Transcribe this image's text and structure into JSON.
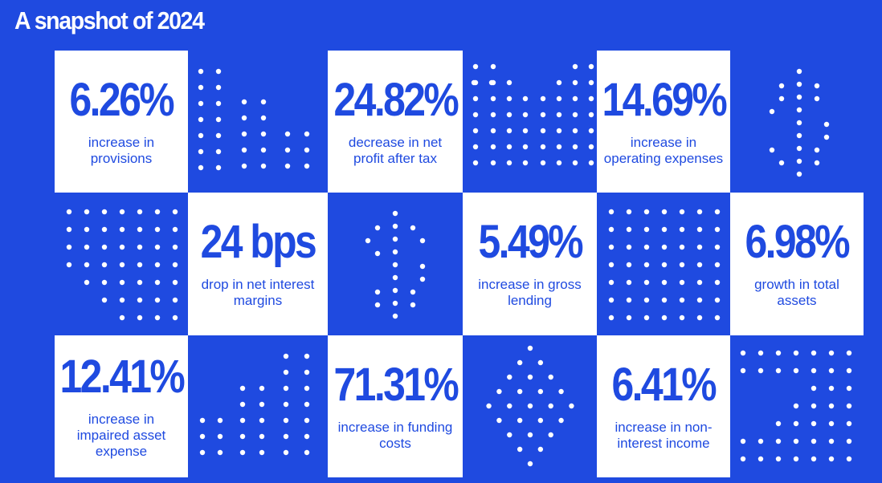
{
  "page": {
    "title": "A snapshot of 2024"
  },
  "stats": [
    {
      "value": "6.26%",
      "label": "increase in provisions"
    },
    {
      "value": "24.82%",
      "label": "decrease in net profit after tax"
    },
    {
      "value": "14.69%",
      "label": "increase in operating expenses"
    },
    {
      "value": "24 bps",
      "label": "drop in net interest margins"
    },
    {
      "value": "5.49%",
      "label": "increase in gross lending"
    },
    {
      "value": "6.98%",
      "label": "growth in total assets"
    },
    {
      "value": "12.41%",
      "label": "increase in impaired asset expense"
    },
    {
      "value": "71.31%",
      "label": "increase in funding costs"
    },
    {
      "value": "6.41%",
      "label": "increase in non-interest income"
    }
  ],
  "colors": {
    "background": "#1f4ae0",
    "tile": "#ffffff",
    "accent": "#1f4ae0"
  },
  "decorations": [
    "rising-bars-dots",
    "falling-bars-dots",
    "dollar-sign-dots",
    "rising-arrow-dots",
    "dollar-sign-dots",
    "dot-grid-pattern",
    "rising-bars-dots",
    "diamond-dots",
    "rising-arrow-dots"
  ]
}
